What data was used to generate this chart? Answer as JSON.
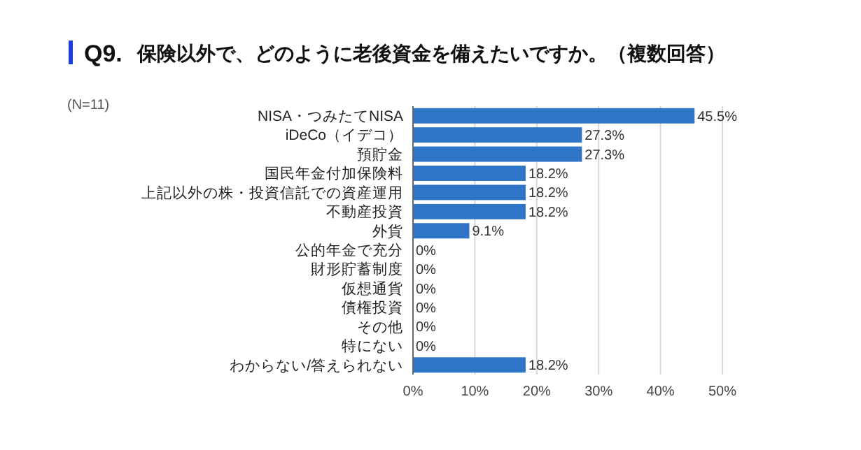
{
  "chart_data": {
    "type": "bar",
    "orientation": "horizontal",
    "title": "Q9.",
    "subtitle": "保険以外で、どのように老後資金を備えたいですか。（複数回答）",
    "annotations": [
      "(N=11)"
    ],
    "categories": [
      "NISA・つみたてNISA",
      "iDeCo（イデコ）",
      "預貯金",
      "国民年金付加保険料",
      "上記以外の株・投資信託での資産運用",
      "不動産投資",
      "外貨",
      "公的年金で充分",
      "財形貯蓄制度",
      "仮想通貨",
      "債権投資",
      "その他",
      "特にない",
      "わからない/答えられない"
    ],
    "values": [
      45.5,
      27.3,
      27.3,
      18.2,
      18.2,
      18.2,
      9.1,
      0,
      0,
      0,
      0,
      0,
      0,
      18.2
    ],
    "value_labels": [
      "45.5%",
      "27.3%",
      "27.3%",
      "18.2%",
      "18.2%",
      "18.2%",
      "9.1%",
      "0%",
      "0%",
      "0%",
      "0%",
      "0%",
      "0%",
      "18.2%"
    ],
    "color": "#2e75c8",
    "xlim": [
      0,
      50
    ],
    "xticks": [
      {
        "value": 0,
        "label": "0%"
      },
      {
        "value": 10,
        "label": "10%"
      },
      {
        "value": 20,
        "label": "20%"
      },
      {
        "value": 30,
        "label": "30%"
      },
      {
        "value": 40,
        "label": "40%"
      },
      {
        "value": 50,
        "label": "50%"
      }
    ],
    "grid": "x"
  }
}
